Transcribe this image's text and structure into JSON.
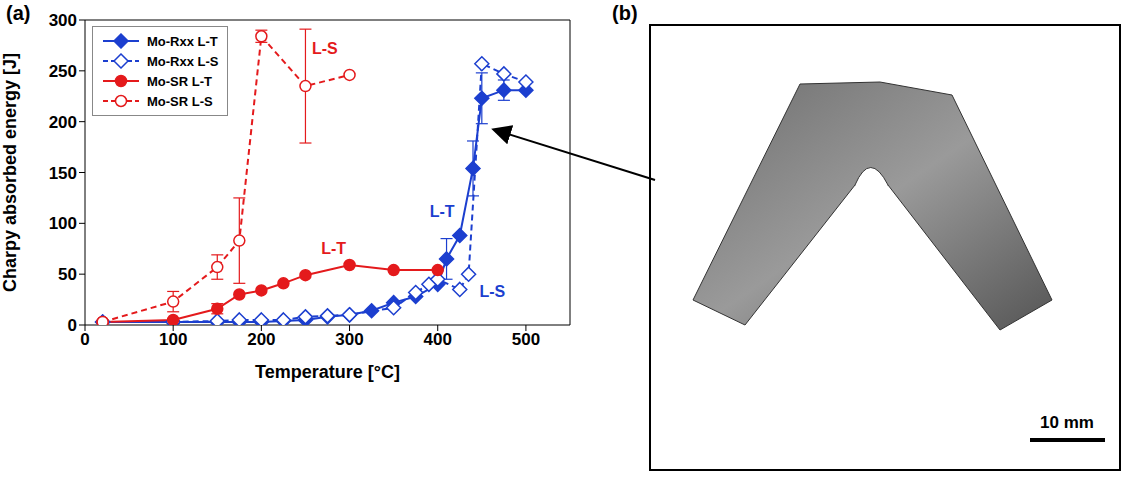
{
  "chart_data": {
    "type": "line",
    "panel_label": "(a)",
    "x_label": "Temperature [°C]",
    "y_label": "Charpy absorbed energy [J]",
    "xlim": [
      0,
      550
    ],
    "xticks": [
      0,
      100,
      200,
      300,
      400,
      500
    ],
    "ylim": [
      0,
      300
    ],
    "yticks": [
      0,
      50,
      100,
      150,
      200,
      250,
      300
    ],
    "grid": false,
    "legend": "top-left",
    "series": [
      {
        "name": "Mo-Rxx L-T",
        "color": "#1c3fcf",
        "marker": "filled_diamond",
        "line_style": "solid",
        "x": [
          20,
          100,
          150,
          175,
          200,
          225,
          250,
          275,
          300,
          325,
          350,
          375,
          400,
          410,
          425,
          440,
          450,
          475,
          500
        ],
        "values": [
          3,
          3,
          3,
          3,
          3,
          4,
          5,
          8,
          10,
          14,
          22,
          28,
          40,
          65,
          88,
          154,
          223,
          231,
          231
        ],
        "errors": [
          null,
          null,
          null,
          null,
          null,
          null,
          null,
          null,
          null,
          null,
          null,
          null,
          null,
          20,
          null,
          27,
          25,
          10,
          null
        ]
      },
      {
        "name": "Mo-Rxx L-S",
        "color": "#1c3fcf",
        "marker": "open_diamond",
        "line_style": "dashed",
        "x": [
          20,
          100,
          150,
          175,
          200,
          225,
          250,
          275,
          300,
          350,
          375,
          390,
          400,
          425,
          435,
          450,
          475,
          500
        ],
        "values": [
          3,
          3,
          4,
          5,
          5,
          5,
          8,
          9,
          10,
          17,
          32,
          40,
          45,
          35,
          50,
          257,
          247,
          239
        ],
        "errors": [
          null,
          null,
          null,
          null,
          null,
          null,
          null,
          null,
          null,
          null,
          null,
          null,
          null,
          null,
          null,
          null,
          null,
          null
        ]
      },
      {
        "name": "Mo-SR L-T",
        "color": "#e41a1c",
        "marker": "filled_circle",
        "line_style": "solid",
        "x": [
          20,
          100,
          150,
          175,
          200,
          225,
          250,
          300,
          350,
          400
        ],
        "values": [
          3,
          5,
          16,
          30,
          34,
          41,
          49,
          59,
          54,
          54
        ],
        "errors": [
          null,
          null,
          5,
          null,
          null,
          null,
          null,
          null,
          null,
          null
        ]
      },
      {
        "name": "Mo-SR L-S",
        "color": "#e41a1c",
        "marker": "open_circle",
        "line_style": "dashed",
        "x": [
          20,
          100,
          150,
          175,
          200,
          250,
          300
        ],
        "values": [
          3,
          23,
          57,
          83,
          284,
          235,
          246
        ],
        "errors": [
          null,
          10,
          12,
          42,
          6,
          56,
          null
        ]
      }
    ],
    "annotations": [
      {
        "text": "L-S",
        "x": 272,
        "y": 272,
        "color": "#e41a1c"
      },
      {
        "text": "L-T",
        "x": 282,
        "y": 75,
        "color": "#e41a1c"
      },
      {
        "text": "L-T",
        "x": 405,
        "y": 112,
        "color": "#1c3fcf"
      },
      {
        "text": "L-S",
        "x": 462,
        "y": 33,
        "color": "#1c3fcf"
      }
    ]
  },
  "image_panel": {
    "panel_label": "(b)",
    "scale_bar": "10 mm"
  }
}
